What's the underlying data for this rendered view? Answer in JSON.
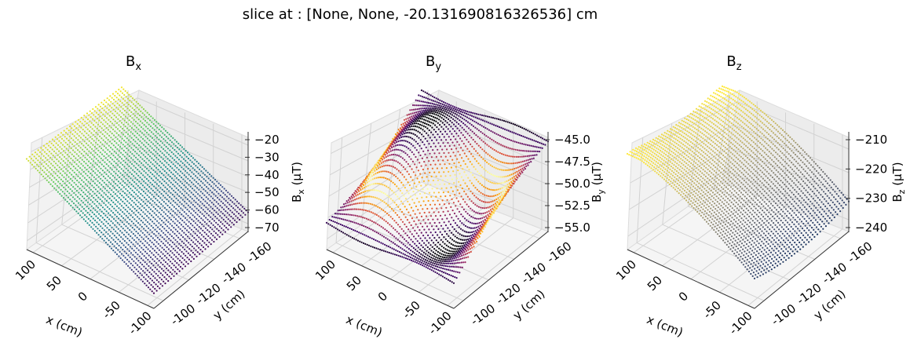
{
  "figure": {
    "suptitle": "slice at : [None, None, -20.131690816326536] cm"
  },
  "chart_data": [
    {
      "type": "surface3d",
      "title": "B",
      "title_sub": "x",
      "xlabel": "x (cm)",
      "ylabel": "y (cm)",
      "zlabel": "B",
      "zlabel_sub": "x",
      "zlabel_unit": " (µT)",
      "x_ticks": [
        "100",
        "50",
        "0",
        "-50",
        "-100"
      ],
      "y_ticks": [
        "-100",
        "-120",
        "-140",
        "-160"
      ],
      "z_ticks": [
        "−20",
        "−30",
        "−40",
        "−50",
        "−60",
        "−70"
      ],
      "xlim": [
        -110,
        110
      ],
      "ylim": [
        -95,
        170
      ],
      "zlim": [
        -72,
        -18
      ],
      "colormap": "viridis",
      "surface_description": "plane tilting from about -20 at x=110 to about -70 at x=-110"
    },
    {
      "type": "surface3d",
      "title": "B",
      "title_sub": "y",
      "xlabel": "x (cm)",
      "ylabel": "y (cm)",
      "zlabel": "B",
      "zlabel_sub": "y",
      "zlabel_unit": " (µT)",
      "x_ticks": [
        "100",
        "50",
        "0",
        "-50",
        "-100"
      ],
      "y_ticks": [
        "-100",
        "-120",
        "-140",
        "-160"
      ],
      "z_ticks": [
        "−45.0",
        "−47.5",
        "−50.0",
        "−52.5",
        "−55.0"
      ],
      "xlim": [
        -110,
        110
      ],
      "ylim": [
        -95,
        170
      ],
      "zlim": [
        -56,
        -44
      ],
      "colormap": "inferno",
      "surface_description": "saddle-like surface ranging roughly -45 to -55"
    },
    {
      "type": "surface3d",
      "title": "B",
      "title_sub": "z",
      "xlabel": "x (cm)",
      "ylabel": "y (cm)",
      "zlabel": "B",
      "zlabel_sub": "z",
      "zlabel_unit": " (µT)",
      "x_ticks": [
        "100",
        "50",
        "0",
        "-50",
        "-100"
      ],
      "y_ticks": [
        "-100",
        "-120",
        "-140",
        "-160"
      ],
      "z_ticks": [
        "−210",
        "−220",
        "−230",
        "−240"
      ],
      "xlim": [
        -110,
        110
      ],
      "ylim": [
        -95,
        170
      ],
      "zlim": [
        -245,
        -203
      ],
      "colormap": "cividis",
      "surface_description": "curved surface from about -205 at x=110 to about -240 at x=-110"
    }
  ]
}
